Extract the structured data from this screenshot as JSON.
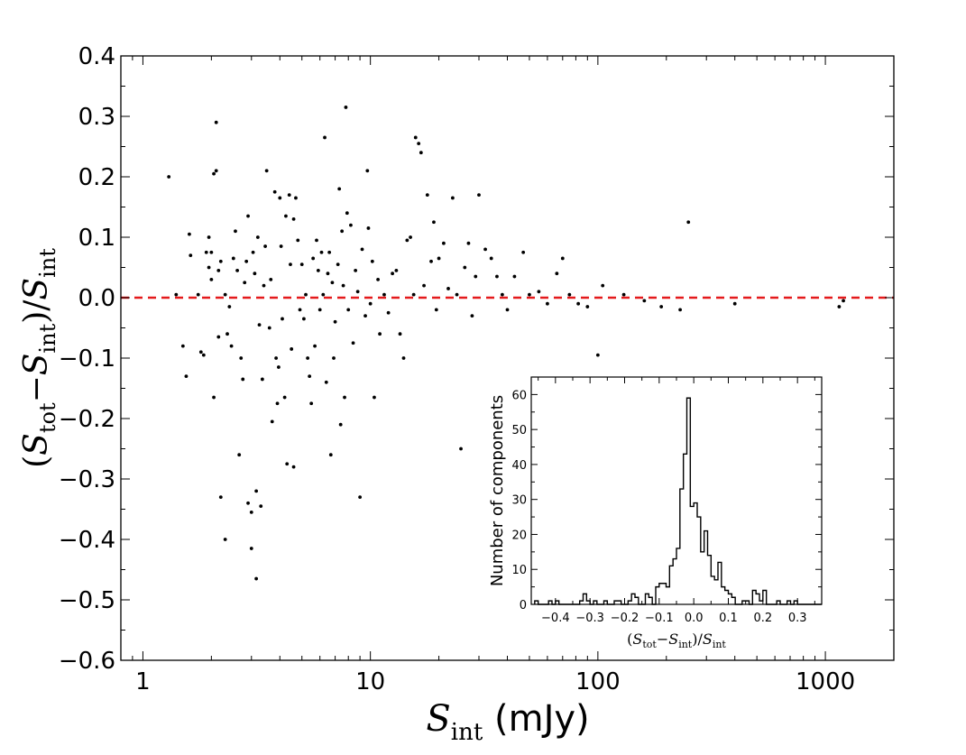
{
  "chart_data": [
    {
      "type": "scatter",
      "name": "main",
      "xscale": "log",
      "xlim": [
        0.8,
        2000
      ],
      "ylim": [
        -0.6,
        0.4
      ],
      "xticks": [
        1,
        10,
        100,
        1000
      ],
      "xtick_labels": [
        "1",
        "10",
        "100",
        "1000"
      ],
      "yticks": [
        -0.6,
        -0.5,
        -0.4,
        -0.3,
        -0.2,
        -0.1,
        0.0,
        0.1,
        0.2,
        0.3,
        0.4
      ],
      "ytick_labels": [
        "−0.6",
        "−0.5",
        "−0.4",
        "−0.3",
        "−0.2",
        "−0.1",
        "0.0",
        "0.1",
        "0.2",
        "0.3",
        "0.4"
      ],
      "xlabel": {
        "main": "S",
        "sub": "int",
        "unit": " (mJy)"
      },
      "ylabel": {
        "open": "(",
        "s1": "S",
        "sub1": "tot",
        "minus": "−",
        "s2": "S",
        "sub2": "int",
        "close": ")/",
        "s3": "S",
        "sub3": "int"
      },
      "reference_line": {
        "y": 0.0,
        "color": "#e41a1c",
        "style": "dashed"
      },
      "marker_color": "#000000",
      "points": [
        [
          1.3,
          0.2
        ],
        [
          1.4,
          0.005
        ],
        [
          1.5,
          -0.08
        ],
        [
          1.55,
          -0.13
        ],
        [
          1.6,
          0.105
        ],
        [
          1.62,
          0.07
        ],
        [
          1.75,
          0.005
        ],
        [
          1.8,
          -0.09
        ],
        [
          1.85,
          -0.095
        ],
        [
          1.9,
          0.075
        ],
        [
          1.95,
          0.05
        ],
        [
          1.95,
          0.1
        ],
        [
          2.0,
          0.03
        ],
        [
          2.0,
          0.075
        ],
        [
          2.05,
          -0.165
        ],
        [
          2.05,
          0.205
        ],
        [
          2.1,
          0.21
        ],
        [
          2.1,
          0.29
        ],
        [
          2.15,
          0.045
        ],
        [
          2.15,
          -0.065
        ],
        [
          2.2,
          -0.33
        ],
        [
          2.2,
          0.06
        ],
        [
          2.3,
          -0.4
        ],
        [
          2.3,
          0.005
        ],
        [
          2.35,
          -0.06
        ],
        [
          2.4,
          -0.015
        ],
        [
          2.45,
          -0.08
        ],
        [
          2.5,
          0.065
        ],
        [
          2.55,
          0.11
        ],
        [
          2.6,
          0.045
        ],
        [
          2.65,
          -0.26
        ],
        [
          2.7,
          -0.1
        ],
        [
          2.75,
          -0.135
        ],
        [
          2.8,
          0.025
        ],
        [
          2.85,
          0.06
        ],
        [
          2.9,
          0.135
        ],
        [
          2.9,
          -0.34
        ],
        [
          3.0,
          -0.415
        ],
        [
          3.0,
          -0.355
        ],
        [
          3.05,
          0.075
        ],
        [
          3.1,
          0.04
        ],
        [
          3.15,
          -0.32
        ],
        [
          3.15,
          -0.465
        ],
        [
          3.2,
          0.1
        ],
        [
          3.25,
          -0.045
        ],
        [
          3.3,
          -0.345
        ],
        [
          3.35,
          -0.135
        ],
        [
          3.4,
          0.02
        ],
        [
          3.45,
          0.085
        ],
        [
          3.5,
          0.21
        ],
        [
          3.6,
          -0.05
        ],
        [
          3.65,
          0.03
        ],
        [
          3.7,
          -0.205
        ],
        [
          3.8,
          0.175
        ],
        [
          3.85,
          -0.1
        ],
        [
          3.9,
          -0.175
        ],
        [
          3.95,
          -0.115
        ],
        [
          4.0,
          0.165
        ],
        [
          4.05,
          0.085
        ],
        [
          4.1,
          -0.035
        ],
        [
          4.2,
          -0.165
        ],
        [
          4.25,
          0.135
        ],
        [
          4.3,
          -0.275
        ],
        [
          4.4,
          0.17
        ],
        [
          4.45,
          0.055
        ],
        [
          4.5,
          -0.085
        ],
        [
          4.6,
          0.13
        ],
        [
          4.6,
          -0.28
        ],
        [
          4.7,
          0.165
        ],
        [
          4.8,
          0.095
        ],
        [
          4.9,
          -0.02
        ],
        [
          5.0,
          0.055
        ],
        [
          5.1,
          -0.035
        ],
        [
          5.2,
          0.005
        ],
        [
          5.3,
          -0.1
        ],
        [
          5.4,
          -0.13
        ],
        [
          5.5,
          -0.175
        ],
        [
          5.6,
          0.065
        ],
        [
          5.7,
          -0.08
        ],
        [
          5.8,
          0.095
        ],
        [
          5.9,
          0.045
        ],
        [
          6.0,
          -0.02
        ],
        [
          6.1,
          0.075
        ],
        [
          6.2,
          0.005
        ],
        [
          6.3,
          0.265
        ],
        [
          6.4,
          -0.14
        ],
        [
          6.5,
          0.04
        ],
        [
          6.6,
          0.075
        ],
        [
          6.7,
          -0.26
        ],
        [
          6.8,
          0.025
        ],
        [
          6.9,
          -0.1
        ],
        [
          7.0,
          -0.04
        ],
        [
          7.2,
          0.055
        ],
        [
          7.3,
          0.18
        ],
        [
          7.4,
          -0.21
        ],
        [
          7.5,
          0.11
        ],
        [
          7.6,
          0.02
        ],
        [
          7.7,
          -0.165
        ],
        [
          7.8,
          0.315
        ],
        [
          7.9,
          0.14
        ],
        [
          8.0,
          -0.02
        ],
        [
          8.2,
          0.12
        ],
        [
          8.4,
          -0.075
        ],
        [
          8.6,
          0.045
        ],
        [
          8.8,
          0.01
        ],
        [
          9.0,
          -0.33
        ],
        [
          9.2,
          0.08
        ],
        [
          9.5,
          -0.03
        ],
        [
          9.7,
          0.21
        ],
        [
          9.8,
          0.115
        ],
        [
          10.0,
          -0.01
        ],
        [
          10.2,
          0.06
        ],
        [
          10.4,
          -0.165
        ],
        [
          10.8,
          0.03
        ],
        [
          11.0,
          -0.06
        ],
        [
          11.5,
          0.005
        ],
        [
          12.0,
          -0.025
        ],
        [
          12.5,
          0.04
        ],
        [
          13.0,
          0.045
        ],
        [
          13.5,
          -0.06
        ],
        [
          14.0,
          -0.1
        ],
        [
          14.5,
          0.095
        ],
        [
          15.0,
          0.1
        ],
        [
          15.5,
          0.005
        ],
        [
          15.8,
          0.265
        ],
        [
          16.3,
          0.255
        ],
        [
          16.7,
          0.24
        ],
        [
          17.2,
          0.02
        ],
        [
          17.8,
          0.17
        ],
        [
          18.5,
          0.06
        ],
        [
          19.0,
          0.125
        ],
        [
          19.5,
          -0.02
        ],
        [
          20.0,
          0.065
        ],
        [
          21.0,
          0.09
        ],
        [
          22.0,
          0.015
        ],
        [
          23.0,
          0.165
        ],
        [
          24.0,
          0.005
        ],
        [
          25.0,
          -0.25
        ],
        [
          26.0,
          0.05
        ],
        [
          27.0,
          0.09
        ],
        [
          28.0,
          -0.03
        ],
        [
          29.0,
          0.035
        ],
        [
          30.0,
          0.17
        ],
        [
          32.0,
          0.08
        ],
        [
          34.0,
          0.065
        ],
        [
          36.0,
          0.035
        ],
        [
          38.0,
          0.005
        ],
        [
          40.0,
          -0.02
        ],
        [
          43.0,
          0.035
        ],
        [
          47.0,
          0.075
        ],
        [
          50.0,
          0.005
        ],
        [
          55.0,
          0.01
        ],
        [
          60.0,
          -0.01
        ],
        [
          66.0,
          0.04
        ],
        [
          70.0,
          0.065
        ],
        [
          75.0,
          0.005
        ],
        [
          82.0,
          -0.01
        ],
        [
          90.0,
          -0.015
        ],
        [
          100.0,
          -0.095
        ],
        [
          105.0,
          0.02
        ],
        [
          130.0,
          0.005
        ],
        [
          160.0,
          -0.005
        ],
        [
          190.0,
          -0.015
        ],
        [
          230.0,
          -0.02
        ],
        [
          250.0,
          0.125
        ],
        [
          400.0,
          -0.01
        ],
        [
          1150.0,
          -0.015
        ],
        [
          1200.0,
          -0.005
        ]
      ]
    },
    {
      "type": "histogram",
      "name": "inset",
      "xlim": [
        -0.47,
        0.37
      ],
      "ylim": [
        0,
        65
      ],
      "xticks": [
        -0.4,
        -0.3,
        -0.2,
        -0.1,
        0.0,
        0.1,
        0.2,
        0.3
      ],
      "xtick_labels": [
        "−0.4",
        "−0.3",
        "−0.2",
        "−0.1",
        "0.0",
        "0.1",
        "0.2",
        "0.3"
      ],
      "yticks": [
        0,
        10,
        20,
        30,
        40,
        50,
        60
      ],
      "ytick_labels": [
        "0",
        "10",
        "20",
        "30",
        "40",
        "50",
        "60"
      ],
      "ylabel": "Number of components",
      "xlabel": {
        "open": "(",
        "s1": "S",
        "sub1": "tot",
        "minus": "−",
        "s2": "S",
        "sub2": "int",
        "close": ")/",
        "s3": "S",
        "sub3": "int"
      },
      "bin_start": -0.46,
      "bin_width": 0.01,
      "counts": [
        1,
        0,
        0,
        0,
        1,
        0,
        1,
        0,
        0,
        0,
        0,
        0,
        0,
        1,
        3,
        1,
        0,
        1,
        0,
        0,
        1,
        0,
        0,
        1,
        1,
        0,
        0,
        1,
        3,
        2,
        0,
        0,
        3,
        2,
        0,
        5,
        6,
        6,
        5,
        11,
        13,
        16,
        33,
        43,
        59,
        28,
        29,
        25,
        15,
        21,
        14,
        8,
        7,
        12,
        5,
        4,
        3,
        2,
        0,
        0,
        1,
        1,
        0,
        4,
        3,
        1,
        4,
        0,
        0,
        0,
        1,
        0,
        0,
        1,
        0,
        1,
        0,
        0,
        0,
        0,
        0,
        0,
        0
      ]
    }
  ]
}
